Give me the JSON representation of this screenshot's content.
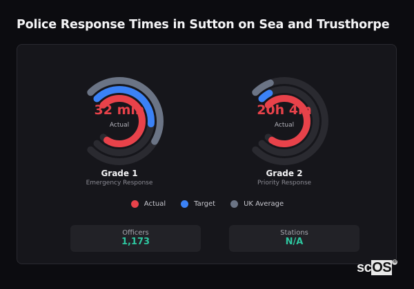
{
  "title": "Police Response Times in Sutton on Sea and Trusthorpe",
  "gauges": [
    {
      "value": "32 min",
      "value_caption": "Actual",
      "grade": "Grade 1",
      "description": "Emergency Response",
      "arcs": {
        "actual_deg": 258,
        "target_deg": 140,
        "uk_average_deg": 165
      }
    },
    {
      "value": "20h 4m",
      "value_caption": "Actual",
      "grade": "Grade 2",
      "description": "Priority Response",
      "arcs": {
        "actual_deg": 258,
        "target_deg": 17,
        "uk_average_deg": 25
      }
    }
  ],
  "legend": [
    {
      "label": "Actual",
      "color": "#e8424a"
    },
    {
      "label": "Target",
      "color": "#3b82f6"
    },
    {
      "label": "UK Average",
      "color": "#6b7485"
    }
  ],
  "stats": [
    {
      "label": "Officers",
      "value": "1,173"
    },
    {
      "label": "Stations",
      "value": "N/A"
    }
  ],
  "logo": {
    "text_plain": "sc",
    "text_box": "OS",
    "mark": "®"
  },
  "colors": {
    "actual": "#e8424a",
    "target": "#3b82f6",
    "uk_average": "#6b7485",
    "track": "#2a2a30",
    "stat_value": "#2ec7a0"
  },
  "chart_data": {
    "type": "radial-bar",
    "title": "Police Response Times in Sutton on Sea and Trusthorpe",
    "categories": [
      "Grade 1 (Emergency Response)",
      "Grade 2 (Priority Response)"
    ],
    "series": [
      {
        "name": "Actual",
        "values": [
          "32 min",
          "20h 4m"
        ],
        "arc_fraction": [
          0.96,
          0.96
        ]
      },
      {
        "name": "Target",
        "values": [
          null,
          null
        ],
        "arc_fraction": [
          0.52,
          0.06
        ]
      },
      {
        "name": "UK Average",
        "values": [
          null,
          null
        ],
        "arc_fraction": [
          0.61,
          0.09
        ]
      }
    ],
    "legend_position": "bottom",
    "track_sweep_deg": 270
  }
}
